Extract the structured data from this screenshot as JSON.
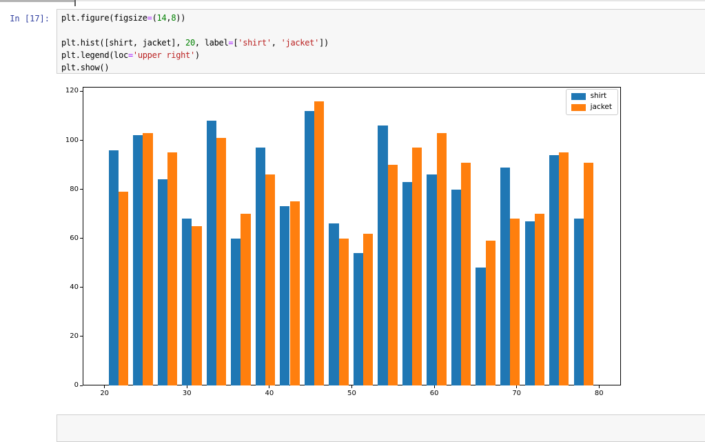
{
  "notebook": {
    "prompt": "In [17]:",
    "prompt_color": "#303F9F",
    "cell_bg": "#f7f7f7",
    "cell_border": "#cfcfcf",
    "code_colors": {
      "p": "#000000",
      "op": "#AA22FF",
      "num": "#008000",
      "str": "#BA2121"
    },
    "code_lines": [
      [
        [
          "plt.figure(figsize",
          "p"
        ],
        [
          "=",
          "op"
        ],
        [
          "(",
          "p"
        ],
        [
          "14",
          "num"
        ],
        [
          ",",
          "p"
        ],
        [
          "8",
          "num"
        ],
        [
          "))",
          "p"
        ]
      ],
      [],
      [
        [
          "plt.hist([shirt, jacket], ",
          "p"
        ],
        [
          "20",
          "num"
        ],
        [
          ", label",
          "p"
        ],
        [
          "=",
          "op"
        ],
        [
          "[",
          "p"
        ],
        [
          "'shirt'",
          "str"
        ],
        [
          ", ",
          "p"
        ],
        [
          "'jacket'",
          "str"
        ],
        [
          "])",
          "p"
        ]
      ],
      [
        [
          "plt.legend(loc",
          "p"
        ],
        [
          "=",
          "op"
        ],
        [
          "'upper right'",
          "str"
        ],
        [
          ")",
          "p"
        ]
      ],
      [
        [
          "plt.show()",
          "p"
        ]
      ]
    ]
  },
  "chart_data": {
    "type": "bar",
    "subtype": "histogram",
    "title": "",
    "xlabel": "",
    "ylabel": "",
    "bins": 20,
    "bin_start": 20.2,
    "bin_width": 2.97,
    "series": [
      {
        "name": "shirt",
        "color": "#1f77b4",
        "values": [
          96,
          102,
          84,
          68,
          108,
          60,
          97,
          73,
          112,
          66,
          54,
          106,
          83,
          86,
          80,
          48,
          89,
          67,
          94,
          68
        ]
      },
      {
        "name": "jacket",
        "color": "#ff7f0e",
        "values": [
          79,
          103,
          95,
          65,
          101,
          70,
          86,
          75,
          116,
          60,
          62,
          90,
          97,
          103,
          91,
          59,
          68,
          70,
          95,
          91
        ]
      }
    ],
    "xlim": [
      17.35,
      82.65
    ],
    "ylim": [
      0,
      121.8
    ],
    "xticks": [
      20,
      30,
      40,
      50,
      60,
      70,
      80
    ],
    "yticks": [
      0,
      20,
      40,
      60,
      80,
      100,
      120
    ],
    "grid": false,
    "legend": {
      "loc": "upper right",
      "labels": [
        "shirt",
        "jacket"
      ]
    }
  }
}
